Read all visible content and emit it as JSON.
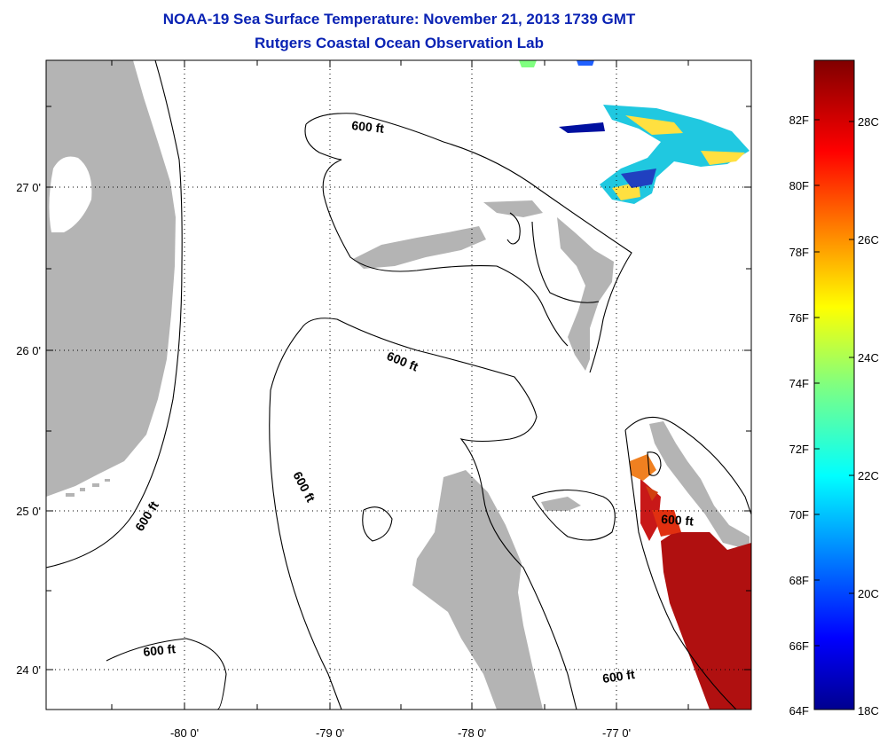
{
  "header": {
    "title": "NOAA-19 Sea Surface Temperature:  November 21, 2013 1739 GMT",
    "subtitle": "Rutgers Coastal Ocean Observation Lab"
  },
  "axes": {
    "x_ticks": [
      "-80 0'",
      "-79 0'",
      "-78 0'",
      "-77 0'"
    ],
    "y_ticks": [
      "27 0'",
      "26 0'",
      "25 0'",
      "24 0'"
    ]
  },
  "contours": {
    "label": "600 ft"
  },
  "colorbar": {
    "fahrenheit": [
      "82F",
      "80F",
      "78F",
      "76F",
      "74F",
      "72F",
      "70F",
      "68F",
      "66F",
      "64F"
    ],
    "celsius": [
      "28C",
      "26C",
      "24C",
      "22C",
      "20C",
      "18C"
    ]
  },
  "colors": {
    "title": "#0a23b4",
    "land": "#b4b4b4",
    "warm_sst": "#b01010",
    "cloud_free_cool": "#20c8e0"
  }
}
